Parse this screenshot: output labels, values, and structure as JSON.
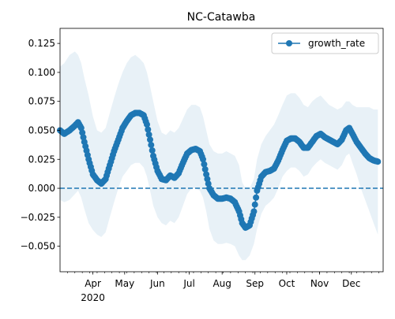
{
  "chart_data": {
    "type": "line",
    "title": "NC-Catawba",
    "xlabel": "",
    "ylabel": "",
    "x_tick_labels": [
      {
        "label": "Apr",
        "date": "2020-04-01"
      },
      {
        "label": "May",
        "date": "2020-05-01"
      },
      {
        "label": "Jun",
        "date": "2020-06-01"
      },
      {
        "label": "Jul",
        "date": "2020-07-01"
      },
      {
        "label": "Aug",
        "date": "2020-08-01"
      },
      {
        "label": "Sep",
        "date": "2020-09-01"
      },
      {
        "label": "Oct",
        "date": "2020-10-01"
      },
      {
        "label": "Nov",
        "date": "2020-11-01"
      },
      {
        "label": "Dec",
        "date": "2020-12-01"
      }
    ],
    "x_year_label": "2020",
    "xlim": [
      "2020-03-01",
      "2020-12-31"
    ],
    "y_ticks": [
      -0.05,
      -0.025,
      0.0,
      0.025,
      0.05,
      0.075,
      0.1,
      0.125
    ],
    "y_tick_labels": [
      "−0.050",
      "−0.025",
      "0.000",
      "0.025",
      "0.050",
      "0.075",
      "0.100",
      "0.125"
    ],
    "ylim": [
      -0.072,
      0.138
    ],
    "reference_line": {
      "y": 0.0,
      "style": "dashed",
      "color": "#1f77b4"
    },
    "legend": {
      "position": "top-right",
      "entries": [
        "growth_rate"
      ]
    },
    "grid": false,
    "series": [
      {
        "name": "growth_rate",
        "color": "#1f77b4",
        "marker": "circle",
        "band_color": "#1f77b4",
        "points": [
          {
            "date": "2020-03-01",
            "y": 0.05,
            "lo": -0.01,
            "hi": 0.105
          },
          {
            "date": "2020-03-05",
            "y": 0.047,
            "lo": -0.012,
            "hi": 0.108
          },
          {
            "date": "2020-03-10",
            "y": 0.05,
            "lo": -0.01,
            "hi": 0.115
          },
          {
            "date": "2020-03-15",
            "y": 0.054,
            "lo": -0.005,
            "hi": 0.118
          },
          {
            "date": "2020-03-18",
            "y": 0.057,
            "lo": -0.002,
            "hi": 0.115
          },
          {
            "date": "2020-03-21",
            "y": 0.052,
            "lo": -0.008,
            "hi": 0.108
          },
          {
            "date": "2020-03-24",
            "y": 0.04,
            "lo": -0.018,
            "hi": 0.095
          },
          {
            "date": "2020-03-28",
            "y": 0.025,
            "lo": -0.03,
            "hi": 0.08
          },
          {
            "date": "2020-04-01",
            "y": 0.012,
            "lo": -0.036,
            "hi": 0.062
          },
          {
            "date": "2020-04-05",
            "y": 0.007,
            "lo": -0.04,
            "hi": 0.05
          },
          {
            "date": "2020-04-09",
            "y": 0.004,
            "lo": -0.042,
            "hi": 0.048
          },
          {
            "date": "2020-04-13",
            "y": 0.008,
            "lo": -0.038,
            "hi": 0.052
          },
          {
            "date": "2020-04-17",
            "y": 0.02,
            "lo": -0.025,
            "hi": 0.065
          },
          {
            "date": "2020-04-21",
            "y": 0.032,
            "lo": -0.012,
            "hi": 0.078
          },
          {
            "date": "2020-04-25",
            "y": 0.042,
            "lo": 0.0,
            "hi": 0.09
          },
          {
            "date": "2020-04-29",
            "y": 0.052,
            "lo": 0.01,
            "hi": 0.1
          },
          {
            "date": "2020-05-03",
            "y": 0.058,
            "lo": 0.015,
            "hi": 0.108
          },
          {
            "date": "2020-05-07",
            "y": 0.063,
            "lo": 0.02,
            "hi": 0.113
          },
          {
            "date": "2020-05-11",
            "y": 0.065,
            "lo": 0.022,
            "hi": 0.115
          },
          {
            "date": "2020-05-15",
            "y": 0.065,
            "lo": 0.022,
            "hi": 0.112
          },
          {
            "date": "2020-05-19",
            "y": 0.063,
            "lo": 0.018,
            "hi": 0.108
          },
          {
            "date": "2020-05-22",
            "y": 0.055,
            "lo": 0.01,
            "hi": 0.1
          },
          {
            "date": "2020-05-25",
            "y": 0.042,
            "lo": -0.002,
            "hi": 0.088
          },
          {
            "date": "2020-05-28",
            "y": 0.028,
            "lo": -0.015,
            "hi": 0.075
          },
          {
            "date": "2020-06-01",
            "y": 0.015,
            "lo": -0.025,
            "hi": 0.058
          },
          {
            "date": "2020-06-05",
            "y": 0.008,
            "lo": -0.03,
            "hi": 0.048
          },
          {
            "date": "2020-06-09",
            "y": 0.007,
            "lo": -0.032,
            "hi": 0.046
          },
          {
            "date": "2020-06-13",
            "y": 0.011,
            "lo": -0.028,
            "hi": 0.05
          },
          {
            "date": "2020-06-17",
            "y": 0.009,
            "lo": -0.03,
            "hi": 0.048
          },
          {
            "date": "2020-06-21",
            "y": 0.013,
            "lo": -0.025,
            "hi": 0.052
          },
          {
            "date": "2020-06-25",
            "y": 0.022,
            "lo": -0.015,
            "hi": 0.06
          },
          {
            "date": "2020-06-29",
            "y": 0.03,
            "lo": -0.005,
            "hi": 0.068
          },
          {
            "date": "2020-07-03",
            "y": 0.033,
            "lo": 0.0,
            "hi": 0.072
          },
          {
            "date": "2020-07-07",
            "y": 0.034,
            "lo": 0.0,
            "hi": 0.072
          },
          {
            "date": "2020-07-11",
            "y": 0.032,
            "lo": -0.002,
            "hi": 0.07
          },
          {
            "date": "2020-07-14",
            "y": 0.025,
            "lo": -0.008,
            "hi": 0.062
          },
          {
            "date": "2020-07-17",
            "y": 0.012,
            "lo": -0.02,
            "hi": 0.05
          },
          {
            "date": "2020-07-20",
            "y": 0.0,
            "lo": -0.035,
            "hi": 0.038
          },
          {
            "date": "2020-07-24",
            "y": -0.006,
            "lo": -0.045,
            "hi": 0.032
          },
          {
            "date": "2020-07-28",
            "y": -0.009,
            "lo": -0.048,
            "hi": 0.03
          },
          {
            "date": "2020-08-01",
            "y": -0.009,
            "lo": -0.048,
            "hi": 0.03
          },
          {
            "date": "2020-08-05",
            "y": -0.008,
            "lo": -0.047,
            "hi": 0.032
          },
          {
            "date": "2020-08-09",
            "y": -0.009,
            "lo": -0.048,
            "hi": 0.03
          },
          {
            "date": "2020-08-13",
            "y": -0.012,
            "lo": -0.05,
            "hi": 0.028
          },
          {
            "date": "2020-08-17",
            "y": -0.02,
            "lo": -0.058,
            "hi": 0.02
          },
          {
            "date": "2020-08-20",
            "y": -0.03,
            "lo": -0.062,
            "hi": 0.005
          },
          {
            "date": "2020-08-23",
            "y": -0.034,
            "lo": -0.062,
            "hi": 0.0
          },
          {
            "date": "2020-08-27",
            "y": -0.032,
            "lo": -0.058,
            "hi": 0.0
          },
          {
            "date": "2020-08-31",
            "y": -0.02,
            "lo": -0.048,
            "hi": 0.008
          },
          {
            "date": "2020-09-03",
            "y": -0.002,
            "lo": -0.035,
            "hi": 0.025
          },
          {
            "date": "2020-09-07",
            "y": 0.01,
            "lo": -0.022,
            "hi": 0.038
          },
          {
            "date": "2020-09-11",
            "y": 0.014,
            "lo": -0.015,
            "hi": 0.045
          },
          {
            "date": "2020-09-15",
            "y": 0.015,
            "lo": -0.012,
            "hi": 0.05
          },
          {
            "date": "2020-09-19",
            "y": 0.017,
            "lo": -0.008,
            "hi": 0.055
          },
          {
            "date": "2020-09-23",
            "y": 0.024,
            "lo": 0.0,
            "hi": 0.063
          },
          {
            "date": "2020-09-27",
            "y": 0.033,
            "lo": 0.01,
            "hi": 0.072
          },
          {
            "date": "2020-10-01",
            "y": 0.041,
            "lo": 0.015,
            "hi": 0.08
          },
          {
            "date": "2020-10-05",
            "y": 0.043,
            "lo": 0.018,
            "hi": 0.082
          },
          {
            "date": "2020-10-09",
            "y": 0.043,
            "lo": 0.018,
            "hi": 0.082
          },
          {
            "date": "2020-10-13",
            "y": 0.04,
            "lo": 0.015,
            "hi": 0.078
          },
          {
            "date": "2020-10-17",
            "y": 0.035,
            "lo": 0.01,
            "hi": 0.072
          },
          {
            "date": "2020-10-21",
            "y": 0.035,
            "lo": 0.012,
            "hi": 0.07
          },
          {
            "date": "2020-10-25",
            "y": 0.04,
            "lo": 0.018,
            "hi": 0.075
          },
          {
            "date": "2020-10-29",
            "y": 0.045,
            "lo": 0.022,
            "hi": 0.078
          },
          {
            "date": "2020-11-02",
            "y": 0.047,
            "lo": 0.025,
            "hi": 0.08
          },
          {
            "date": "2020-11-06",
            "y": 0.044,
            "lo": 0.022,
            "hi": 0.076
          },
          {
            "date": "2020-11-10",
            "y": 0.042,
            "lo": 0.02,
            "hi": 0.072
          },
          {
            "date": "2020-11-14",
            "y": 0.04,
            "lo": 0.018,
            "hi": 0.07
          },
          {
            "date": "2020-11-18",
            "y": 0.038,
            "lo": 0.016,
            "hi": 0.068
          },
          {
            "date": "2020-11-22",
            "y": 0.042,
            "lo": 0.02,
            "hi": 0.07
          },
          {
            "date": "2020-11-26",
            "y": 0.05,
            "lo": 0.028,
            "hi": 0.075
          },
          {
            "date": "2020-11-29",
            "y": 0.052,
            "lo": 0.03,
            "hi": 0.075
          },
          {
            "date": "2020-12-02",
            "y": 0.047,
            "lo": 0.022,
            "hi": 0.072
          },
          {
            "date": "2020-12-06",
            "y": 0.04,
            "lo": 0.012,
            "hi": 0.07
          },
          {
            "date": "2020-12-10",
            "y": 0.035,
            "lo": 0.0,
            "hi": 0.07
          },
          {
            "date": "2020-12-14",
            "y": 0.03,
            "lo": -0.01,
            "hi": 0.07
          },
          {
            "date": "2020-12-18",
            "y": 0.026,
            "lo": -0.02,
            "hi": 0.07
          },
          {
            "date": "2020-12-22",
            "y": 0.024,
            "lo": -0.03,
            "hi": 0.068
          },
          {
            "date": "2020-12-26",
            "y": 0.023,
            "lo": -0.04,
            "hi": 0.068
          }
        ]
      }
    ]
  }
}
